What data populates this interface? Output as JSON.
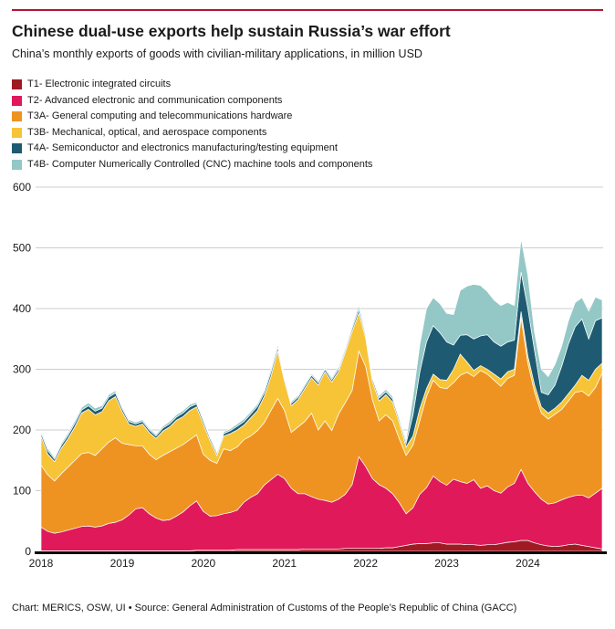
{
  "header": {
    "title": "Chinese dual-use exports help sustain Russia’s war effort",
    "subtitle": "China’s monthly exports of goods with civilian-military applications, in million USD"
  },
  "footer": {
    "text": "Chart: MERICS, OSW, UI • Source: General Administration of Customs of the People’s Republic of China (GACC)"
  },
  "styles": {
    "brand_rule_color": "#b01735",
    "grid_color": "#cccccc",
    "axis_color": "#000000",
    "text_color": "#1a1a1a",
    "background": "#ffffff"
  },
  "legend": [
    {
      "id": "T1",
      "label": "T1- Electronic integrated circuits",
      "color": "#9e1b23"
    },
    {
      "id": "T2",
      "label": "T2- Advanced electronic and communication components",
      "color": "#e0195b"
    },
    {
      "id": "T3A",
      "label": "T3A- General computing and telecommunications hardware",
      "color": "#ee9322"
    },
    {
      "id": "T3B",
      "label": "T3B- Mechanical, optical, and aerospace components",
      "color": "#f7c437"
    },
    {
      "id": "T4A",
      "label": "T4A- Semiconductor and electronics manufacturing/testing equipment",
      "color": "#1e5b72"
    },
    {
      "id": "T4B",
      "label": "T4B- Computer Numerically Controlled (CNC) machine tools and components",
      "color": "#93c8c6"
    }
  ],
  "chart_data": {
    "type": "area",
    "stacked": true,
    "title": "Chinese dual-use exports help sustain Russia’s war effort",
    "subtitle": "China’s monthly exports of goods with civilian-military applications, in million USD",
    "unit": "million USD",
    "x_cadence": "monthly",
    "x_start": "2018-01",
    "x_end": "2024-12",
    "x_tick_labels": [
      "2018",
      "2019",
      "2020",
      "2021",
      "2022",
      "2023",
      "2024"
    ],
    "ylim": [
      0,
      600
    ],
    "y_ticks": [
      0,
      100,
      200,
      300,
      400,
      500,
      600
    ],
    "grid": true,
    "legend_position": "top-left",
    "series": [
      {
        "name": "T1- Electronic integrated circuits",
        "color": "#9e1b23",
        "values": [
          1,
          1,
          1,
          1,
          1,
          1,
          1,
          1,
          1,
          1,
          1,
          1,
          1,
          1,
          1,
          1,
          1,
          1,
          1,
          1,
          1,
          1,
          1,
          2,
          2,
          2,
          2,
          2,
          2,
          3,
          3,
          3,
          3,
          3,
          3,
          3,
          3,
          3,
          3,
          4,
          4,
          4,
          4,
          4,
          4,
          5,
          5,
          5,
          5,
          5,
          5,
          6,
          6,
          8,
          10,
          12,
          13,
          13,
          14,
          14,
          12,
          12,
          12,
          11,
          11,
          10,
          11,
          11,
          13,
          15,
          16,
          18,
          18,
          14,
          11,
          9,
          8,
          9,
          11,
          12,
          10,
          8,
          6,
          4
        ]
      },
      {
        "name": "T2- Advanced electronic and communication components",
        "color": "#e0195b",
        "values": [
          39,
          32,
          29,
          31,
          34,
          37,
          40,
          41,
          39,
          41,
          45,
          47,
          51,
          59,
          69,
          71,
          61,
          54,
          50,
          51,
          57,
          64,
          74,
          81,
          64,
          56,
          57,
          60,
          62,
          65,
          78,
          86,
          92,
          106,
          115,
          124,
          117,
          101,
          92,
          91,
          86,
          82,
          80,
          77,
          82,
          89,
          105,
          151,
          135,
          115,
          105,
          98,
          89,
          72,
          52,
          60,
          81,
          92,
          110,
          101,
          97,
          107,
          103,
          101,
          107,
          94,
          97,
          89,
          83,
          91,
          96,
          117,
          94,
          84,
          75,
          69,
          72,
          76,
          78,
          80,
          83,
          80,
          90,
          100
        ]
      },
      {
        "name": "T3A- General computing and telecommunications hardware",
        "color": "#ee9322",
        "values": [
          102,
          93,
          86,
          96,
          104,
          112,
          120,
          121,
          118,
          127,
          134,
          139,
          126,
          116,
          104,
          102,
          98,
          96,
          107,
          112,
          112,
          111,
          109,
          109,
          94,
          92,
          86,
          107,
          102,
          104,
          103,
          101,
          104,
          103,
          114,
          125,
          112,
          92,
          110,
          119,
          138,
          114,
          131,
          118,
          140,
          151,
          155,
          174,
          165,
          130,
          105,
          121,
          120,
          105,
          96,
          103,
          121,
          150,
          158,
          155,
          159,
          159,
          175,
          183,
          170,
          194,
          184,
          182,
          176,
          179,
          178,
          250,
          198,
          164,
          142,
          140,
          146,
          149,
          159,
          170,
          171,
          168,
          174,
          190
        ]
      },
      {
        "name": "T3B- Mechanical, optical, and aerospace components",
        "color": "#f7c437",
        "values": [
          48,
          34,
          32,
          42,
          47,
          55,
          67,
          71,
          67,
          61,
          68,
          68,
          52,
          34,
          32,
          36,
          36,
          35,
          40,
          41,
          46,
          46,
          48,
          46,
          50,
          32,
          13,
          21,
          28,
          28,
          24,
          30,
          33,
          43,
          56,
          78,
          48,
          44,
          45,
          54,
          58,
          74,
          81,
          80,
          70,
          83,
          97,
          62,
          47,
          30,
          33,
          33,
          31,
          27,
          14,
          15,
          20,
          13,
          10,
          13,
          14,
          22,
          35,
          17,
          10,
          8,
          8,
          10,
          12,
          11,
          10,
          10,
          12,
          12,
          10,
          10,
          10,
          12,
          12,
          12,
          26,
          26,
          30,
          16
        ]
      },
      {
        "name": "T4A- Semiconductor and electronics manufacturing/testing equipment",
        "color": "#1e5b72",
        "values": [
          5,
          6,
          4,
          5,
          5,
          6,
          5,
          6,
          6,
          6,
          6,
          6,
          5,
          4,
          4,
          4,
          4,
          4,
          5,
          5,
          5,
          6,
          6,
          5,
          5,
          4,
          4,
          4,
          5,
          6,
          6,
          6,
          7,
          6,
          7,
          6,
          5,
          4,
          4,
          4,
          4,
          4,
          4,
          4,
          4,
          4,
          5,
          6,
          5,
          5,
          5,
          5,
          5,
          5,
          6,
          35,
          60,
          77,
          80,
          77,
          63,
          40,
          31,
          45,
          52,
          49,
          57,
          53,
          54,
          49,
          48,
          65,
          78,
          56,
          24,
          30,
          38,
          59,
          82,
          96,
          93,
          68,
          80,
          75
        ]
      },
      {
        "name": "T4B- Computer Numerically Controlled (CNC) machine tools and components",
        "color": "#93c8c6",
        "values": [
          4,
          4,
          3,
          3,
          4,
          4,
          4,
          5,
          5,
          4,
          4,
          4,
          3,
          3,
          3,
          3,
          3,
          3,
          3,
          4,
          4,
          4,
          4,
          3,
          3,
          3,
          3,
          3,
          3,
          4,
          4,
          4,
          4,
          4,
          5,
          5,
          4,
          3,
          3,
          3,
          3,
          3,
          3,
          3,
          4,
          4,
          4,
          7,
          4,
          3,
          4,
          4,
          4,
          3,
          5,
          30,
          45,
          55,
          46,
          48,
          47,
          50,
          74,
          80,
          90,
          83,
          71,
          69,
          67,
          65,
          57,
          55,
          55,
          30,
          38,
          30,
          34,
          33,
          38,
          40,
          35,
          46,
          39,
          29
        ]
      }
    ]
  }
}
